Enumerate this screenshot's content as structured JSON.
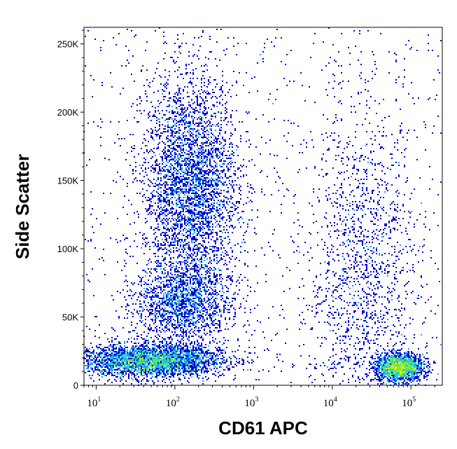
{
  "chart_data": {
    "type": "scatter",
    "style": "density pseudocolor dot plot",
    "xlabel": "CD61 APC",
    "ylabel": "Side Scatter",
    "x_scale": "log",
    "xlim": [
      7,
      250000
    ],
    "ylim": [
      0,
      262144
    ],
    "x_ticks": [
      {
        "base": "10",
        "exp": "1"
      },
      {
        "base": "10",
        "exp": "2"
      },
      {
        "base": "10",
        "exp": "3"
      },
      {
        "base": "10",
        "exp": "4"
      },
      {
        "base": "10",
        "exp": "5"
      }
    ],
    "y_ticks": [
      "0",
      "50K",
      "100K",
      "150K",
      "200K",
      "250K"
    ],
    "y_tick_values": [
      0,
      50000,
      100000,
      150000,
      200000,
      250000
    ],
    "density_colors": [
      "#0000cc",
      "#1f9bff",
      "#23d8c8",
      "#7cf03c",
      "#f0f000",
      "#ff7a00",
      "#ff1a00"
    ],
    "populations": [
      {
        "desc": "low CD61, low SSC",
        "cx_log": 1.7,
        "cy": 18000,
        "sx_log": 0.45,
        "sy": 6000,
        "n": 3500
      },
      {
        "desc": "low CD61, mid SSC",
        "cx_log": 2.2,
        "cy": 145000,
        "sx_log": 0.3,
        "sy": 40000,
        "n": 3800
      },
      {
        "desc": "low CD61, lower-mid SSC",
        "cx_log": 2.1,
        "cy": 60000,
        "sx_log": 0.3,
        "sy": 15000,
        "n": 1600
      },
      {
        "desc": "high CD61, low SSC",
        "cx_log": 4.85,
        "cy": 13000,
        "sx_log": 0.15,
        "sy": 5000,
        "n": 1900
      },
      {
        "desc": "high CD61, scattered SSC",
        "cx_log": 4.4,
        "cy": 80000,
        "sx_log": 0.35,
        "sy": 60000,
        "n": 1500
      }
    ]
  }
}
